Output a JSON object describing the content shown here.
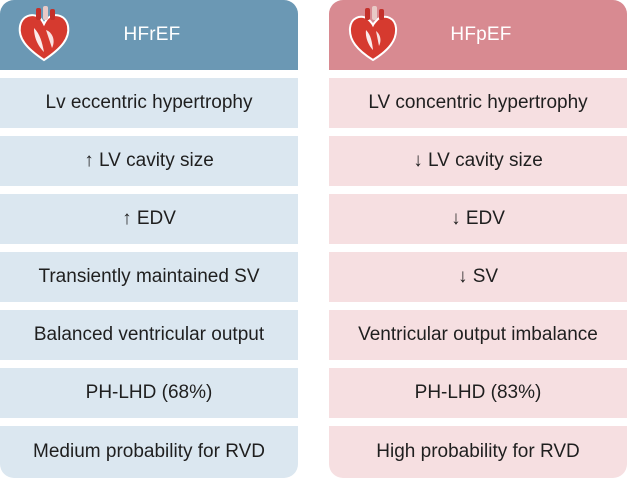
{
  "left": {
    "title": "HFrEF",
    "rows": [
      "Lv eccentric hypertrophy",
      "↑ LV cavity size",
      "↑ EDV",
      "Transiently maintained SV",
      "Balanced ventricular output",
      "PH-LHD (68%)",
      "Medium probability for RVD"
    ],
    "icon": "heart-icon",
    "color": "#6b98b4"
  },
  "right": {
    "title": "HFpEF",
    "rows": [
      "LV concentric hypertrophy",
      "↓ LV cavity size",
      "↓ EDV",
      "↓ SV",
      "Ventricular output imbalance",
      "PH-LHD (83%)",
      "High probability for RVD"
    ],
    "icon": "heart-icon",
    "color": "#d88a91"
  }
}
